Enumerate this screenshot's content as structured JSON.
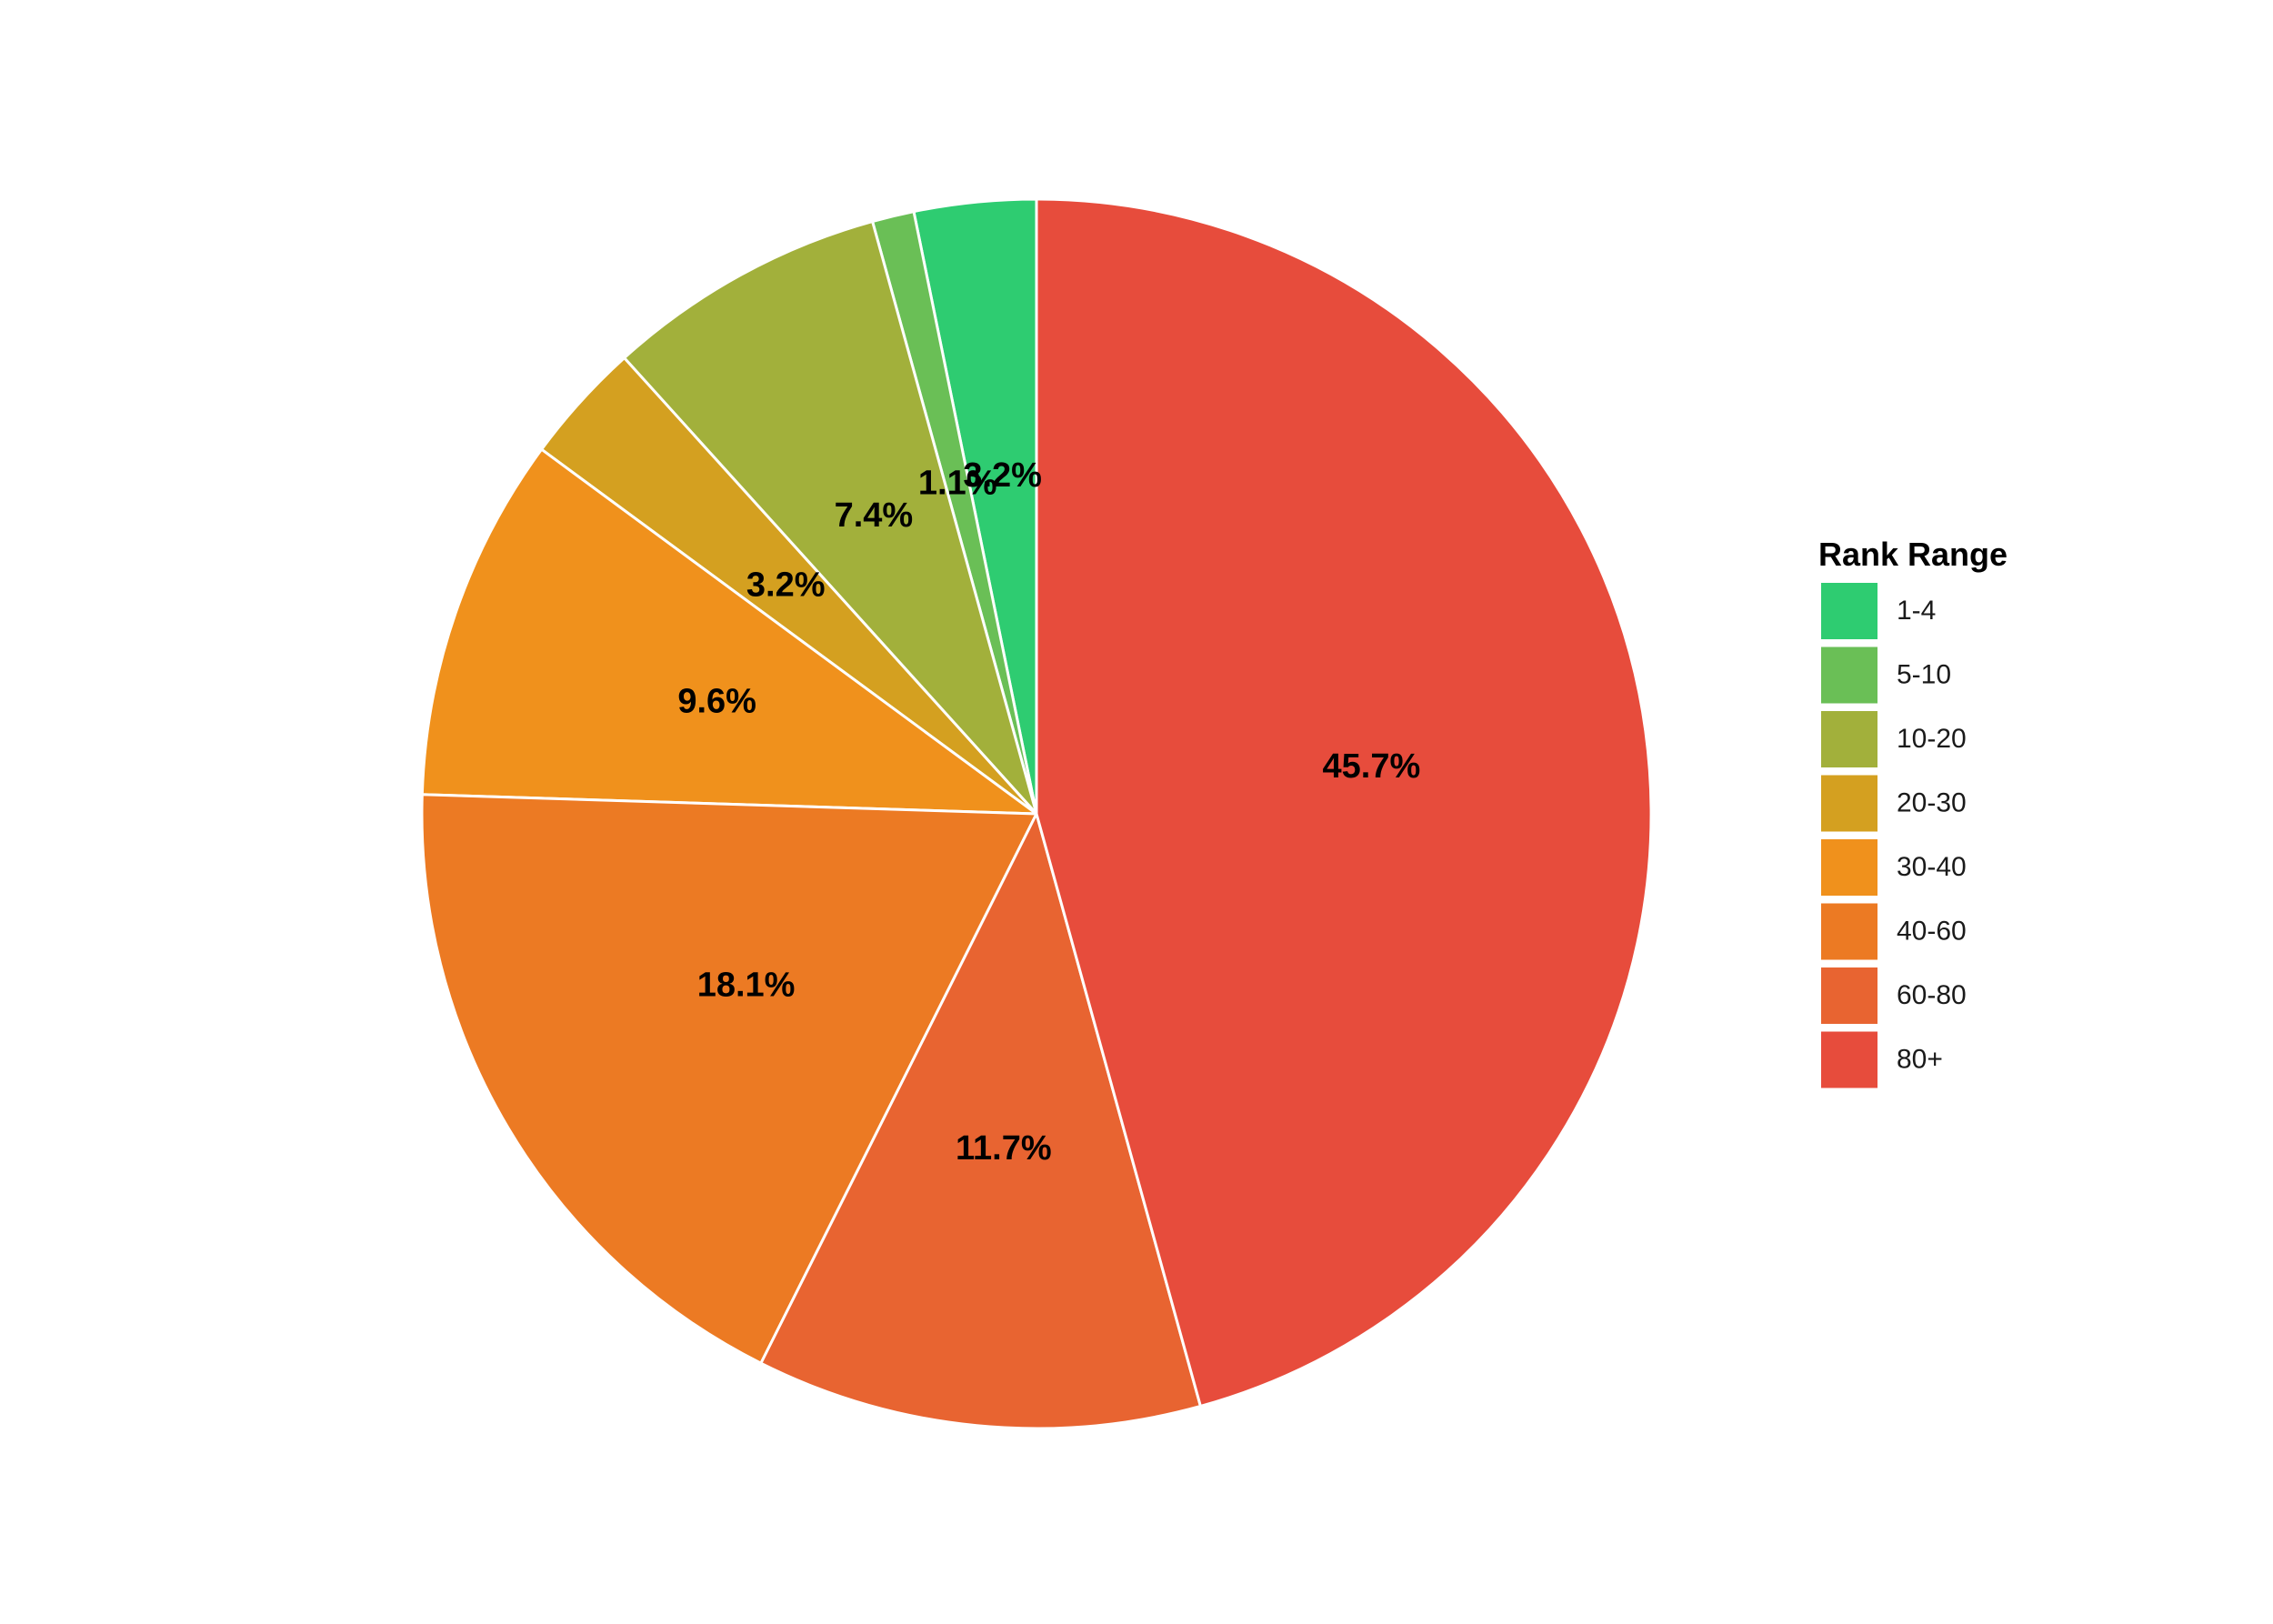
{
  "chart_data": {
    "type": "pie",
    "legend_title": "Rank Range",
    "legend_position": "right",
    "start_angle": "12 o'clock",
    "direction": "counterclockwise",
    "slices": [
      {
        "category": "1-4",
        "value": 3.2,
        "label": "3.2%",
        "color": "#2ecc71"
      },
      {
        "category": "5-10",
        "value": 1.1,
        "label": "1.1%",
        "color": "#6abf56"
      },
      {
        "category": "10-20",
        "value": 7.4,
        "label": "7.4%",
        "color": "#a2b03b"
      },
      {
        "category": "20-30",
        "value": 3.2,
        "label": "3.2%",
        "color": "#d4a020"
      },
      {
        "category": "30-40",
        "value": 9.6,
        "label": "9.6%",
        "color": "#f0911c"
      },
      {
        "category": "40-60",
        "value": 18.1,
        "label": "18.1%",
        "color": "#ec7a23"
      },
      {
        "category": "60-80",
        "value": 11.7,
        "label": "11.7%",
        "color": "#e86431"
      },
      {
        "category": "80+",
        "value": 45.7,
        "label": "45.7%",
        "color": "#e74c3c"
      }
    ]
  }
}
